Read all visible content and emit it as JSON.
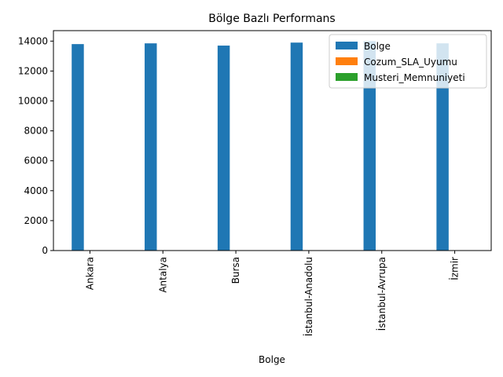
{
  "chart_data": {
    "type": "bar",
    "title": "Bölge Bazlı Performans",
    "xlabel": "Bolge",
    "ylabel": "",
    "categories": [
      "Ankara",
      "Antalya",
      "Bursa",
      "İstanbul-Anadolu",
      "İstanbul-Avrupa",
      "İzmir"
    ],
    "series": [
      {
        "name": "Bolge",
        "color": "#1f77b4",
        "values": [
          13800,
          13850,
          13700,
          13900,
          14000,
          13850
        ]
      },
      {
        "name": "Cozum_SLA_Uyumu",
        "color": "#ff7f0e",
        "values": [
          0.9,
          0.9,
          0.9,
          0.9,
          0.9,
          0.9
        ]
      },
      {
        "name": "Musteri_Memnuniyeti",
        "color": "#2ca02c",
        "values": [
          4.2,
          4.2,
          4.2,
          4.2,
          4.2,
          4.2
        ]
      }
    ],
    "ylim": [
      0,
      14700
    ],
    "yticks": [
      0,
      2000,
      4000,
      6000,
      8000,
      10000,
      12000,
      14000
    ],
    "grid": false,
    "legend_position": "top-right"
  }
}
